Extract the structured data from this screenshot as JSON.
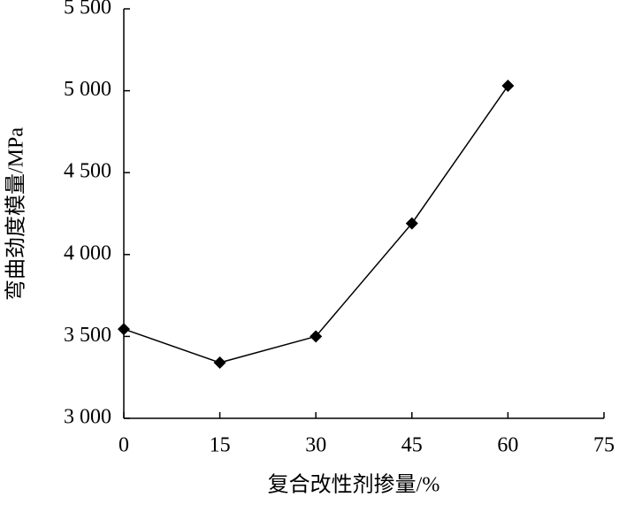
{
  "chart_data": {
    "type": "line",
    "xlabel": "复合改性剂掺量/%",
    "ylabel": "弯曲劲度模量/MPa",
    "x": [
      0,
      15,
      30,
      45,
      60
    ],
    "series": [
      {
        "color": "#000000",
        "values": [
          3545,
          3340,
          3500,
          4190,
          5030
        ]
      }
    ],
    "xlim": [
      0,
      75
    ],
    "xticks": [
      0,
      15,
      30,
      45,
      60,
      75
    ],
    "ylim": [
      3000,
      5500
    ],
    "yticks": [
      {
        "value": 3000,
        "label": "3 000"
      },
      {
        "value": 3500,
        "label": "3 500"
      },
      {
        "value": 4000,
        "label": "4 000"
      },
      {
        "value": 4500,
        "label": "4 500"
      },
      {
        "value": 5000,
        "label": "5 000"
      },
      {
        "value": 5500,
        "label": "5 500"
      }
    ],
    "grid": false
  }
}
